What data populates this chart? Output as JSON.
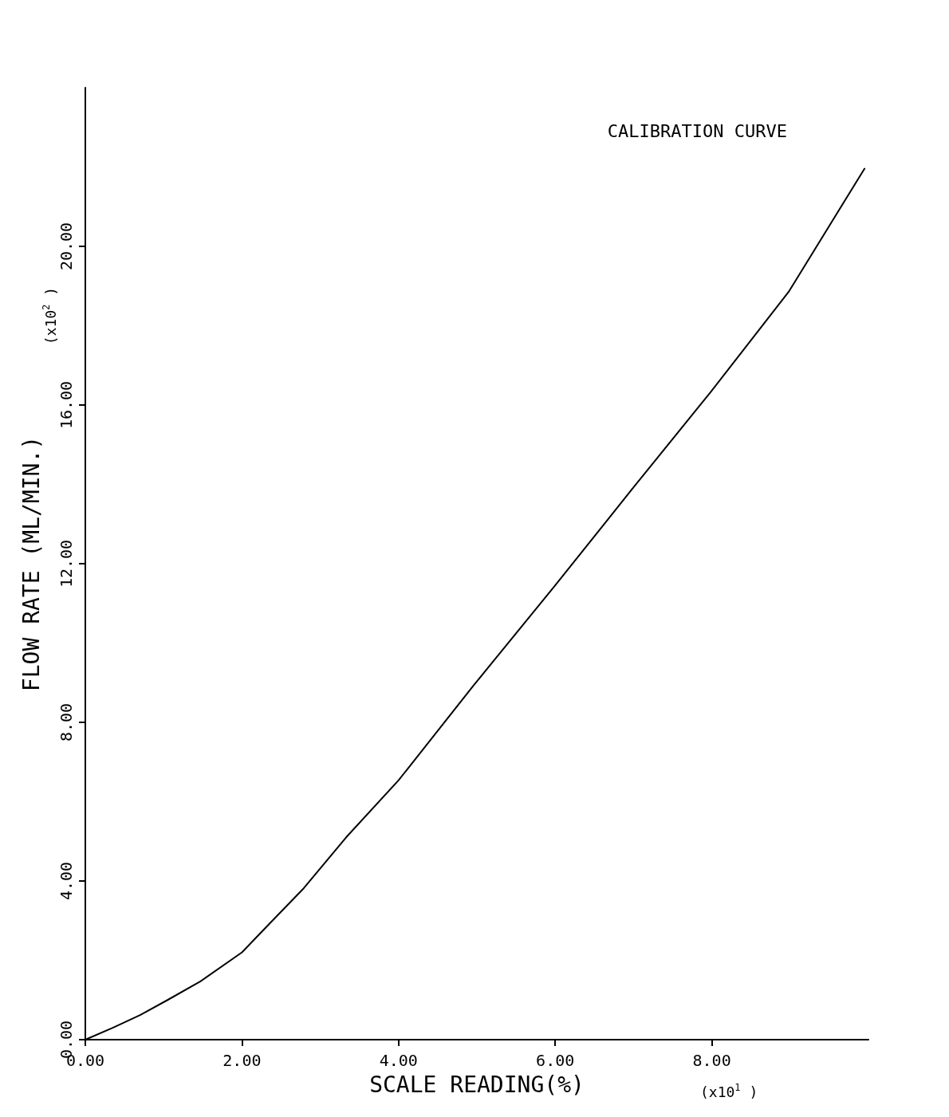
{
  "chart_data": {
    "type": "line",
    "title": "CALIBRATION CURVE",
    "xlabel": "SCALE READING(%)",
    "ylabel": "FLOW RATE (ML/MIN.)",
    "annotations": [
      "(x10$^{1}$ )",
      "(x10$^{2}$ )"
    ],
    "x": [
      0,
      0.35,
      0.7,
      1.05,
      1.47,
      2.0,
      2.32,
      2.79,
      3.33,
      4.0,
      4.95,
      5.99,
      6.97,
      7.99,
      8.98,
      9.95
    ],
    "series": [
      {
        "color": "#000000",
        "values": [
          0,
          0.3,
          0.62,
          1.0,
          1.47,
          2.2,
          2.86,
          3.82,
          5.1,
          6.54,
          8.91,
          11.43,
          13.85,
          16.34,
          18.85,
          21.96
        ]
      }
    ],
    "xlim": [
      0,
      10
    ],
    "ylim": [
      0,
      24
    ],
    "xticks": [
      {
        "value": 0,
        "label": "0.00"
      },
      {
        "value": 2,
        "label": "2.00"
      },
      {
        "value": 4,
        "label": "4.00"
      },
      {
        "value": 6,
        "label": "6.00"
      },
      {
        "value": 8,
        "label": "8.00"
      }
    ],
    "yticks": [
      {
        "value": 0,
        "label": "0.00"
      },
      {
        "value": 4,
        "label": "4.00"
      },
      {
        "value": 8,
        "label": "8.00"
      },
      {
        "value": 12,
        "label": "12.00"
      },
      {
        "value": 16,
        "label": "16.00"
      },
      {
        "value": 20,
        "label": "20.00"
      }
    ],
    "grid": false,
    "marker": "none",
    "line_style": "solid"
  }
}
